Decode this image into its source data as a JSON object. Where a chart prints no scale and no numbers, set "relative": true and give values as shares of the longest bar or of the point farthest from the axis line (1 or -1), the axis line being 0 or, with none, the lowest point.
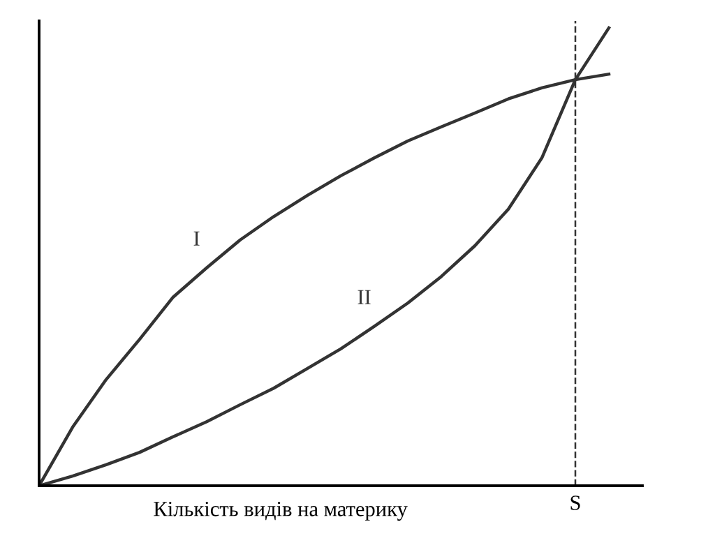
{
  "chart_data": {
    "type": "line",
    "relative": true,
    "xlabel": "Кількість видів на материку",
    "categories": [
      null,
      null,
      null,
      null,
      null,
      null,
      null,
      null,
      null,
      null,
      null,
      null,
      null,
      null,
      null,
      null,
      null,
      null
    ],
    "series": [
      {
        "name": "I",
        "color": "#333333",
        "values": [
          0,
          0.128,
          0.232,
          0.32,
          0.412,
          0.476,
          0.537,
          0.588,
          0.634,
          0.677,
          0.716,
          0.753,
          0.784,
          0.814,
          0.845,
          0.869,
          0.887,
          0.899
        ]
      },
      {
        "name": "II",
        "color": "#333333",
        "values": [
          0,
          0.021,
          0.046,
          0.073,
          0.107,
          0.14,
          0.177,
          0.213,
          0.256,
          0.299,
          0.348,
          0.399,
          0.457,
          0.524,
          0.604,
          0.716,
          0.887,
          1.0
        ]
      }
    ],
    "annotations": [
      "S"
    ]
  }
}
